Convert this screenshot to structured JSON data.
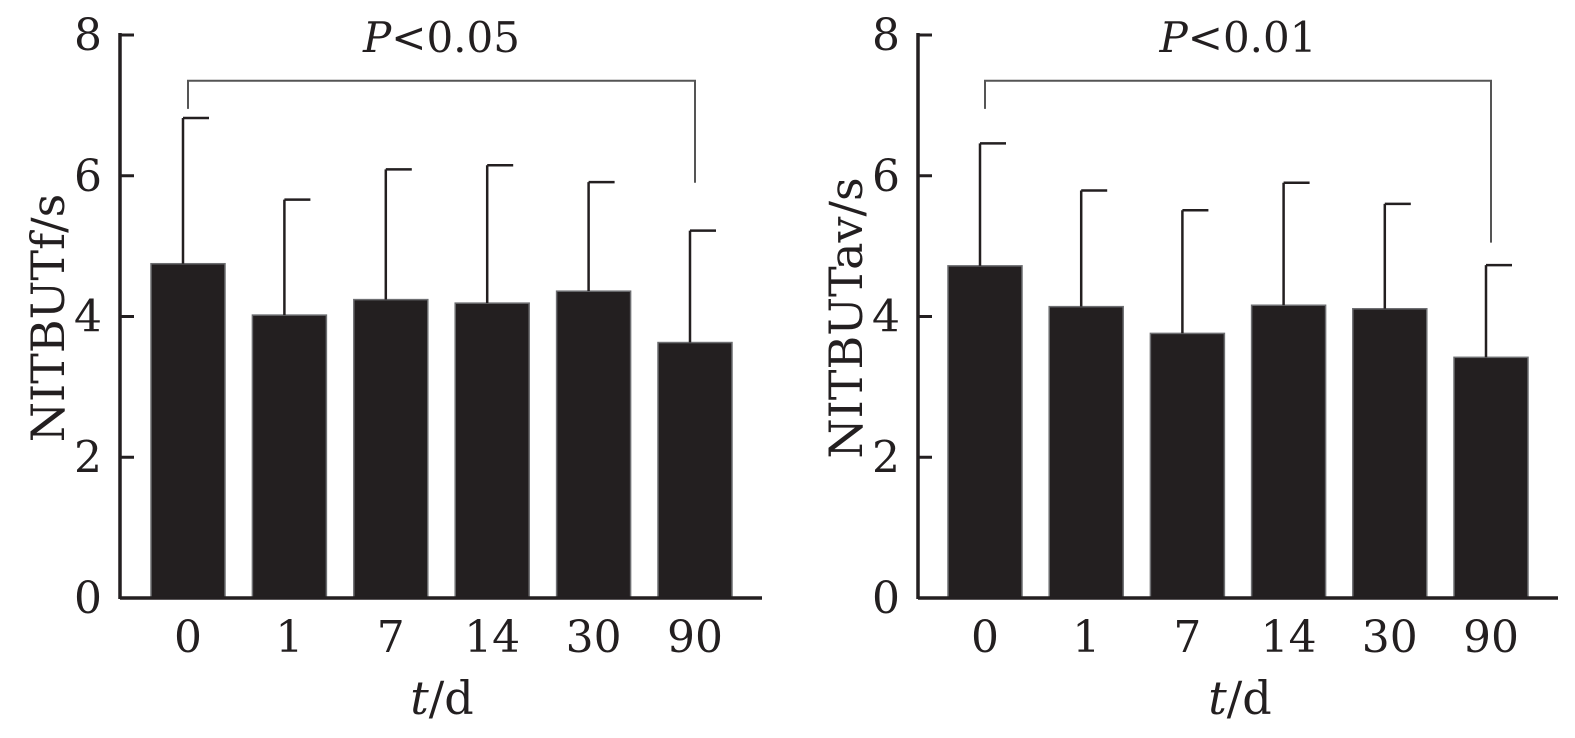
{
  "colors": {
    "bar": "#231f20",
    "axis": "#231f20",
    "bracket": "#555555"
  },
  "chart_data": [
    {
      "type": "bar",
      "categories": [
        "0",
        "1",
        "7",
        "14",
        "30",
        "90"
      ],
      "values": [
        4.75,
        4.02,
        4.24,
        4.19,
        4.36,
        3.63
      ],
      "errors": [
        2.07,
        1.64,
        1.85,
        1.96,
        1.55,
        1.59
      ],
      "xlabel_italic": "t",
      "xlabel_rest": "/d",
      "ylabel": "NITBUTf/s",
      "ylim": [
        0,
        8
      ],
      "yticks": [
        "0",
        "2",
        "4",
        "6",
        "8"
      ],
      "grid": false,
      "annotation": {
        "italic": "P",
        "text": "<0.05",
        "from_index": 0,
        "to_index": 5,
        "left_drop_to": 6.95,
        "right_drop_to": 5.9,
        "bracket_y": 7.35
      }
    },
    {
      "type": "bar",
      "categories": [
        "0",
        "1",
        "7",
        "14",
        "30",
        "90"
      ],
      "values": [
        4.72,
        4.14,
        3.76,
        4.16,
        4.11,
        3.42
      ],
      "errors": [
        1.74,
        1.65,
        1.75,
        1.74,
        1.49,
        1.31
      ],
      "xlabel_italic": "t",
      "xlabel_rest": "/d",
      "ylabel": "NITBUTav/s",
      "ylim": [
        0,
        8
      ],
      "yticks": [
        "0",
        "2",
        "4",
        "6",
        "8"
      ],
      "grid": false,
      "annotation": {
        "italic": "P",
        "text": "<0.01",
        "from_index": 0,
        "to_index": 5,
        "left_drop_to": 6.95,
        "right_drop_to": 5.05,
        "bracket_y": 7.35
      }
    }
  ]
}
